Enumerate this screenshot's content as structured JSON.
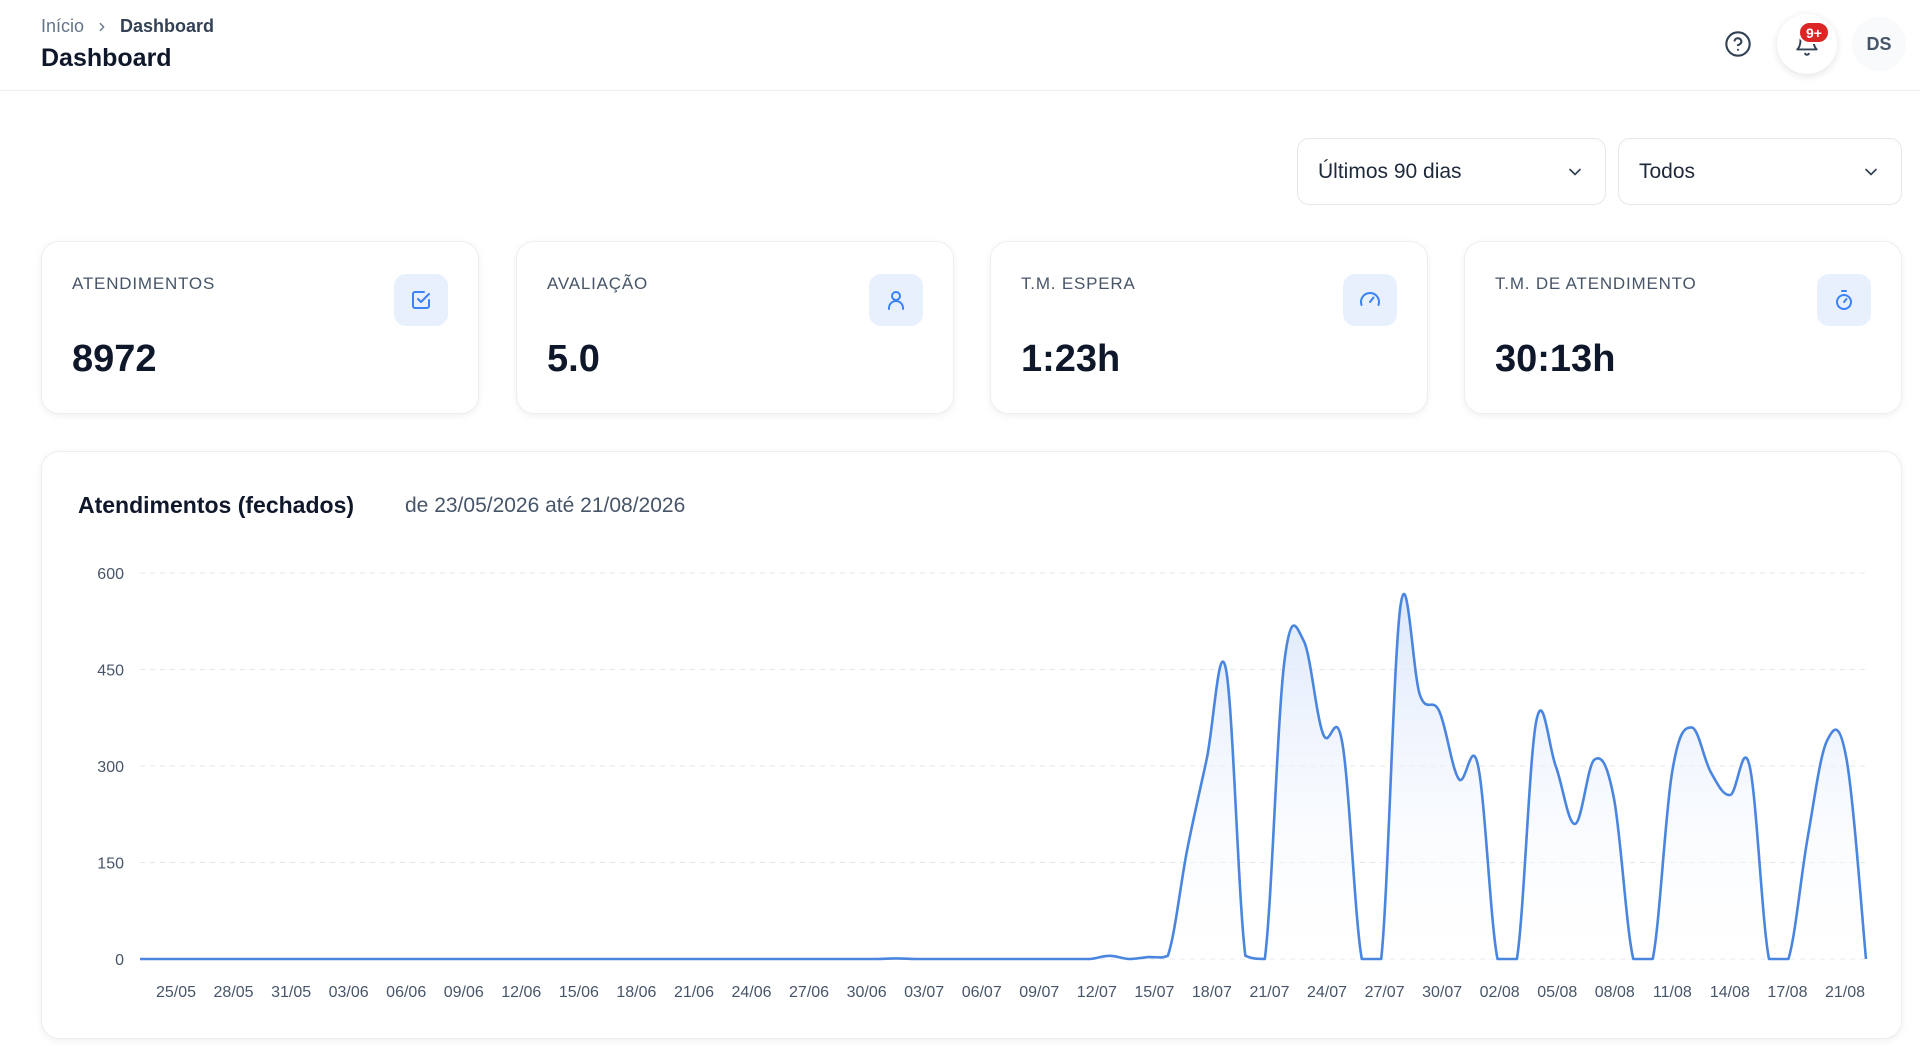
{
  "breadcrumb": {
    "home": "Início",
    "current": "Dashboard"
  },
  "page_title": "Dashboard",
  "header": {
    "notification_badge": "9+",
    "avatar_initials": "DS"
  },
  "filters": {
    "period": "Últimos 90 dias",
    "agent": "Todos"
  },
  "kpis": [
    {
      "label": "ATENDIMENTOS",
      "value": "8972",
      "icon": "checkbox-icon"
    },
    {
      "label": "AVALIAÇÃO",
      "value": "5.0",
      "icon": "user-icon"
    },
    {
      "label": "T.M. ESPERA",
      "value": "1:23h",
      "icon": "gauge-icon"
    },
    {
      "label": "T.M. DE ATENDIMENTO",
      "value": "30:13h",
      "icon": "stopwatch-icon"
    }
  ],
  "chart": {
    "title": "Atendimentos (fechados)",
    "range": "de 23/05/2026 até 21/08/2026"
  },
  "colors": {
    "accent": "#3b82f6",
    "line": "#4a86df",
    "fill_top": "#dbe7fb",
    "badge": "#dc2626"
  },
  "chart_data": {
    "type": "area",
    "title": "Atendimentos (fechados)",
    "subtitle": "de 23/05/2026 até 21/08/2026",
    "start_date": "23/05",
    "ylim": [
      0,
      600
    ],
    "yticks": [
      0,
      150,
      300,
      450,
      600
    ],
    "grid": true,
    "x_labels": [
      "25/05",
      "28/05",
      "31/05",
      "03/06",
      "06/06",
      "09/06",
      "12/06",
      "15/06",
      "18/06",
      "21/06",
      "24/06",
      "27/06",
      "30/06",
      "03/07",
      "06/07",
      "09/07",
      "12/07",
      "15/07",
      "18/07",
      "21/07",
      "24/07",
      "27/07",
      "30/07",
      "02/08",
      "05/08",
      "08/08",
      "11/08",
      "14/08",
      "17/08",
      "21/08"
    ],
    "values": [
      0,
      0,
      0,
      0,
      0,
      0,
      0,
      0,
      0,
      0,
      0,
      0,
      0,
      0,
      0,
      0,
      0,
      0,
      0,
      0,
      0,
      0,
      0,
      0,
      0,
      0,
      0,
      0,
      0,
      0,
      0,
      0,
      0,
      0,
      0,
      0,
      0,
      0,
      0,
      1,
      0,
      0,
      0,
      0,
      0,
      0,
      0,
      0,
      0,
      0,
      5,
      0,
      3,
      5,
      170,
      310,
      450,
      5,
      0,
      460,
      495,
      350,
      335,
      0,
      0,
      550,
      410,
      385,
      280,
      300,
      0,
      0,
      370,
      300,
      210,
      310,
      250,
      0,
      0,
      290,
      360,
      290,
      255,
      300,
      0,
      0,
      190,
      340,
      310,
      0
    ]
  }
}
